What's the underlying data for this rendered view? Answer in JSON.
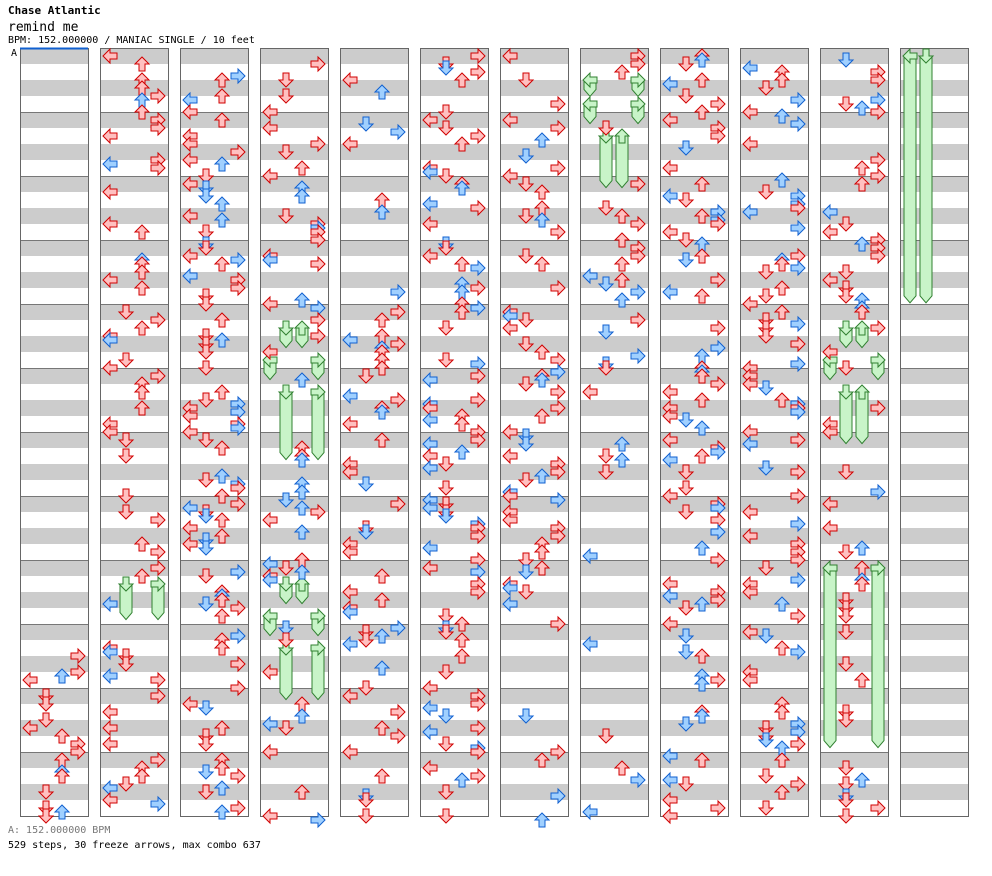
{
  "header": {
    "artist": "Chase Atlantic",
    "title": "remind me",
    "info": "BPM: 152.000000 / MANIAC SINGLE / 10 feet",
    "bpm_marker": "A"
  },
  "footer": {
    "bpm_line": "A: 152.000000 BPM",
    "stats": "529 steps, 30 freeze arrows, max combo 637"
  },
  "colors": {
    "red_fill": "#ffc0c0",
    "red_stroke": "#d00000",
    "blue_fill": "#a0d0ff",
    "blue_stroke": "#1060d0",
    "freeze_fill": "#c8f4c8",
    "freeze_stroke": "#308030",
    "stripe": "#cccccc",
    "marker": "#1060d0"
  },
  "chart": {
    "columns": 12,
    "measures_per_column": 12,
    "freezes": [
      {
        "col": 7,
        "lane": 0,
        "start": 1.5,
        "end": 2.9
      },
      {
        "col": 7,
        "lane": 3,
        "start": 1.5,
        "end": 2.9
      },
      {
        "col": 7,
        "lane": 0,
        "start": 3.0,
        "end": 4.6
      },
      {
        "col": 7,
        "lane": 3,
        "start": 3.0,
        "end": 4.6
      },
      {
        "col": 7,
        "lane": 1,
        "start": 5.0,
        "end": 8.6
      },
      {
        "col": 7,
        "lane": 2,
        "start": 5.0,
        "end": 8.6
      },
      {
        "col": 11,
        "lane": 0,
        "start": 0,
        "end": 15.8
      },
      {
        "col": 11,
        "lane": 1,
        "start": 0,
        "end": 15.8
      },
      {
        "col": 3,
        "lane": 1,
        "start": 17,
        "end": 18.6
      },
      {
        "col": 3,
        "lane": 2,
        "start": 17,
        "end": 18.6
      },
      {
        "col": 3,
        "lane": 0,
        "start": 19,
        "end": 20.6
      },
      {
        "col": 3,
        "lane": 3,
        "start": 19,
        "end": 20.6
      },
      {
        "col": 3,
        "lane": 1,
        "start": 21,
        "end": 25.6
      },
      {
        "col": 3,
        "lane": 3,
        "start": 21,
        "end": 25.6
      },
      {
        "col": 3,
        "lane": 1,
        "start": 33,
        "end": 34.6
      },
      {
        "col": 3,
        "lane": 2,
        "start": 33,
        "end": 34.6
      },
      {
        "col": 3,
        "lane": 0,
        "start": 35,
        "end": 36.6
      },
      {
        "col": 3,
        "lane": 3,
        "start": 35,
        "end": 36.6
      },
      {
        "col": 3,
        "lane": 1,
        "start": 37,
        "end": 40.6
      },
      {
        "col": 3,
        "lane": 3,
        "start": 37,
        "end": 40.6
      },
      {
        "col": 1,
        "lane": 1,
        "start": 33,
        "end": 35.6
      },
      {
        "col": 1,
        "lane": 3,
        "start": 33,
        "end": 35.6
      },
      {
        "col": 10,
        "lane": 1,
        "start": 17,
        "end": 18.6
      },
      {
        "col": 10,
        "lane": 2,
        "start": 17,
        "end": 18.6
      },
      {
        "col": 10,
        "lane": 0,
        "start": 19,
        "end": 20.6
      },
      {
        "col": 10,
        "lane": 3,
        "start": 19,
        "end": 20.6
      },
      {
        "col": 10,
        "lane": 1,
        "start": 21,
        "end": 24.6
      },
      {
        "col": 10,
        "lane": 2,
        "start": 21,
        "end": 24.6
      },
      {
        "col": 10,
        "lane": 0,
        "start": 32,
        "end": 43.6
      },
      {
        "col": 10,
        "lane": 3,
        "start": 32,
        "end": 43.6
      }
    ]
  }
}
